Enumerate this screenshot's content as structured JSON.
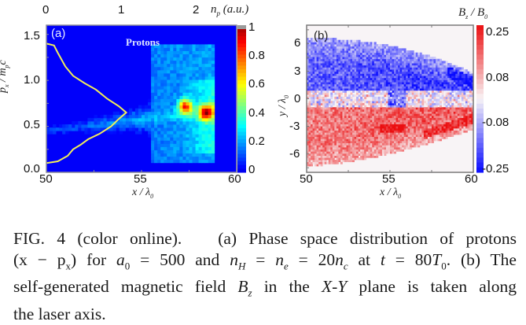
{
  "chart_data": [
    {
      "type": "heatmap",
      "panel": "(a)",
      "title": "Protons",
      "xlabel": "x / λ0",
      "ylabel": "px / mpc",
      "xlim": [
        50,
        60
      ],
      "ylim": [
        0.0,
        1.6
      ],
      "xticks": [
        "50",
        "55",
        "60"
      ],
      "yticks": [
        "0.0",
        "0.5",
        "1.0",
        "1.5"
      ],
      "colorbar": {
        "label": "np (a.u.)",
        "range": [
          0,
          1
        ],
        "ticks": [
          "0",
          "0.2",
          "0.4",
          "0.6",
          "0.8",
          "1"
        ],
        "colormap": "jet"
      },
      "top_axis": {
        "ticks": [
          "0",
          "1",
          "2"
        ],
        "range": [
          0,
          2.5
        ]
      },
      "overlay_line": {
        "color": "#f2ee5a",
        "description_axis": "top",
        "points": [
          [
            0.0,
            1.4
          ],
          [
            0.1,
            1.38
          ],
          [
            0.15,
            1.3
          ],
          [
            0.25,
            1.15
          ],
          [
            0.35,
            1.05
          ],
          [
            0.5,
            0.97
          ],
          [
            0.65,
            0.9
          ],
          [
            0.8,
            0.8
          ],
          [
            0.95,
            0.72
          ],
          [
            1.05,
            0.65
          ],
          [
            0.95,
            0.58
          ],
          [
            0.85,
            0.5
          ],
          [
            0.7,
            0.42
          ],
          [
            0.55,
            0.36
          ],
          [
            0.45,
            0.3
          ],
          [
            0.35,
            0.25
          ],
          [
            0.28,
            0.18
          ],
          [
            0.15,
            0.12
          ],
          [
            0.0,
            0.1
          ]
        ]
      },
      "hot_spots": [
        [
          57.3,
          0.72
        ],
        [
          58.4,
          0.65
        ]
      ]
    },
    {
      "type": "heatmap",
      "panel": "(b)",
      "xlabel": "x / λ0",
      "ylabel": "y / λ0",
      "xlim": [
        50,
        60
      ],
      "ylim": [
        -8,
        8
      ],
      "xticks": [
        "50",
        "55",
        "60"
      ],
      "yticks": [
        "6",
        "3",
        "0",
        "-3",
        "-6"
      ],
      "colorbar": {
        "label": "Bz / B0",
        "range": [
          -0.25,
          0.25
        ],
        "ticks": [
          "0.25",
          "0.08",
          "-0.08",
          "-0.25"
        ],
        "colormap": "blue-white-red"
      }
    }
  ],
  "panel_a": {
    "label": "(a)",
    "title": "Protons",
    "xticks": [
      "50",
      "55",
      "60"
    ],
    "yticks": [
      "0.0",
      "0.5",
      "1.0",
      "1.5"
    ],
    "top_ticks": [
      "0",
      "1",
      "2"
    ],
    "cbar_ticks": [
      "1",
      "0.8",
      "0.6",
      "0.4",
      "0.2",
      "0"
    ],
    "cbar_title_main": "n",
    "cbar_title_sub": "p",
    "cbar_title_unit": "(a.u.)",
    "xlabel_main": "x / λ",
    "xlabel_sub": "0",
    "ylabel_main": "p",
    "ylabel_sub": "x",
    "ylabel_denom": "/ m",
    "ylabel_denom_sub": "p",
    "ylabel_c": "c"
  },
  "panel_b": {
    "label": "(b)",
    "xticks": [
      "50",
      "55",
      "60"
    ],
    "yticks": [
      "6",
      "3",
      "0",
      "-3",
      "-6"
    ],
    "cbar_ticks": [
      "0.25",
      "0.08",
      "-0.08",
      "-0.25"
    ],
    "cbar_title_main": "B",
    "cbar_title_sub": "z",
    "cbar_title_denom": "/ B",
    "cbar_title_denom_sub": "0",
    "xlabel_main": "x / λ",
    "xlabel_sub": "0",
    "ylabel_main": "y / λ",
    "ylabel_sub": "0"
  },
  "caption": {
    "fig": "FIG. 4 (color online).",
    "part_a": "(a) Phase space distribution of protons",
    "line2_a": "(x − p",
    "line2_a_sub": "x",
    "line2_b": ") for ",
    "a0": "a",
    "a0_sub": "0",
    "line2_c": " = 500 and ",
    "nH": "n",
    "nH_sub": "H",
    "eq1": " = ",
    "ne": "n",
    "ne_sub": "e",
    "eq2": " = 20",
    "nc": "n",
    "nc_sub": "c",
    "at": " at ",
    "t": "t",
    "eq3": " = 80",
    "T0": "T",
    "T0_sub": "0",
    "part_b": ". (b) The",
    "line3_a": "self-generated magnetic field ",
    "Bz": "B",
    "Bz_sub": "z",
    "line3_b": " in the ",
    "XY": "X-Y",
    "line3_c": " plane is taken along",
    "line4": "the laser axis."
  }
}
